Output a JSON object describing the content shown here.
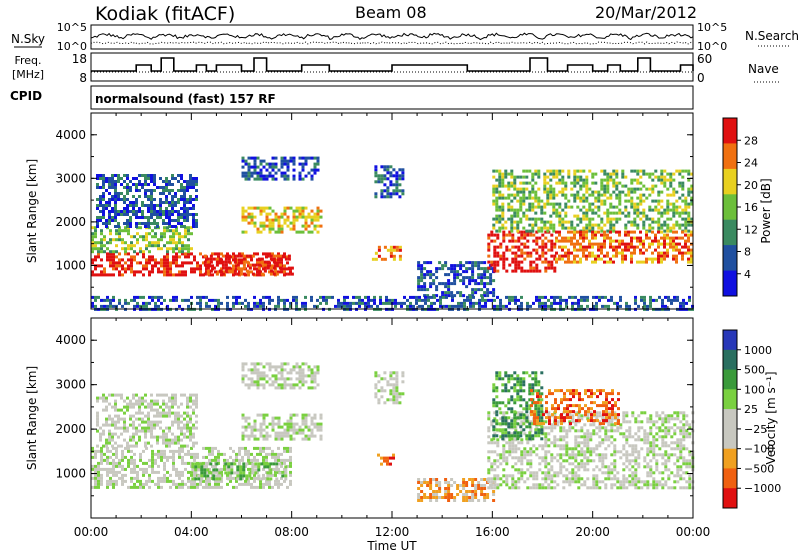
{
  "header": {
    "station": "Kodiak (fitACF)",
    "beam": "Beam 08",
    "date": "20/Mar/2012"
  },
  "sky_panel": {
    "left_label": "N.Sky",
    "right_label": "N.Search",
    "left_ticks": [
      "10^5",
      "10^0"
    ],
    "right_ticks": [
      "10^5",
      "10^0"
    ]
  },
  "freq_panel": {
    "left_label_1": "Freq.",
    "left_label_2": "[MHz]",
    "right_label": "Nave",
    "left_ticks": [
      "18",
      "8"
    ],
    "right_ticks": [
      "60",
      "0"
    ]
  },
  "cpid": {
    "label": "CPID",
    "text": "normalsound (fast) 157 RF"
  },
  "chart_data": [
    {
      "type": "heatmap",
      "name": "power",
      "ylabel": "Slant Range [km]",
      "xlabel": "",
      "ylim": [
        0,
        4500
      ],
      "xlim_hours": [
        0,
        24
      ],
      "y_ticks": [
        "1000",
        "2000",
        "3000",
        "4000"
      ],
      "colorbar_label": "Power [dB]",
      "colorbar_ticks": [
        "4",
        "8",
        "12",
        "16",
        "20",
        "24",
        "28"
      ],
      "colors": [
        "#1010e0",
        "#2050a0",
        "#3a8a60",
        "#6cbf3a",
        "#e8d020",
        "#f07010",
        "#e01010"
      ],
      "regions": [
        {
          "t0": 0.0,
          "t1": 8.0,
          "r0": 800,
          "r1": 1300,
          "level": 6
        },
        {
          "t0": 0.0,
          "t1": 4.0,
          "r0": 1300,
          "r1": 1900,
          "level": 3
        },
        {
          "t0": 0.2,
          "t1": 4.2,
          "r0": 1900,
          "r1": 3100,
          "level": 1
        },
        {
          "t0": 4.5,
          "t1": 8.0,
          "r0": 800,
          "r1": 1250,
          "level": 6
        },
        {
          "t0": 6.0,
          "t1": 9.2,
          "r0": 1750,
          "r1": 2350,
          "level": 4
        },
        {
          "t0": 6.0,
          "t1": 9.0,
          "r0": 2950,
          "r1": 3500,
          "level": 1
        },
        {
          "t0": 11.3,
          "t1": 12.4,
          "r0": 2600,
          "r1": 3300,
          "level": 1
        },
        {
          "t0": 11.2,
          "t1": 12.3,
          "r0": 1150,
          "r1": 1450,
          "level": 5
        },
        {
          "t0": 13.0,
          "t1": 16.0,
          "r0": 300,
          "r1": 1100,
          "level": 1
        },
        {
          "t0": 15.8,
          "t1": 18.5,
          "r0": 900,
          "r1": 1800,
          "level": 6
        },
        {
          "t0": 16.0,
          "t1": 24.0,
          "r0": 1800,
          "r1": 3200,
          "level": 3
        },
        {
          "t0": 18.5,
          "t1": 24.0,
          "r0": 1100,
          "r1": 1800,
          "level": 5
        },
        {
          "t0": 0.0,
          "t1": 24.0,
          "r0": 0,
          "r1": 300,
          "level": 1
        }
      ]
    },
    {
      "type": "heatmap",
      "name": "velocity",
      "ylabel": "Slant Range [km]",
      "xlabel": "Time UT",
      "ylim": [
        0,
        4500
      ],
      "xlim_hours": [
        0,
        24
      ],
      "y_ticks": [
        "1000",
        "2000",
        "3000",
        "4000"
      ],
      "x_ticks": [
        "00:00",
        "04:00",
        "08:00",
        "12:00",
        "16:00",
        "20:00",
        "00:00"
      ],
      "colorbar_label": "Velocity [m s⁻¹]",
      "colorbar_ticks": [
        "1000",
        "500",
        "100",
        "25",
        "−25",
        "−100",
        "−500",
        "−1000"
      ],
      "colors": [
        "#2838b8",
        "#2a6f60",
        "#3a9a3a",
        "#7ad040",
        "#c8c8c0",
        "#c8c8c0",
        "#f0a020",
        "#f06010",
        "#e01010"
      ],
      "regions": [
        {
          "t0": 0.0,
          "t1": 8.0,
          "r0": 700,
          "r1": 1600,
          "level": 4
        },
        {
          "t0": 0.2,
          "t1": 4.2,
          "r0": 1600,
          "r1": 2800,
          "level": 4
        },
        {
          "t0": 4.0,
          "t1": 7.8,
          "r0": 850,
          "r1": 1250,
          "level": 3
        },
        {
          "t0": 6.0,
          "t1": 9.2,
          "r0": 1750,
          "r1": 2350,
          "level": 4
        },
        {
          "t0": 6.0,
          "t1": 9.0,
          "r0": 2950,
          "r1": 3500,
          "level": 4
        },
        {
          "t0": 11.3,
          "t1": 12.4,
          "r0": 2600,
          "r1": 3300,
          "level": 4
        },
        {
          "t0": 11.4,
          "t1": 12.1,
          "r0": 1200,
          "r1": 1450,
          "level": 7
        },
        {
          "t0": 13.0,
          "t1": 16.0,
          "r0": 400,
          "r1": 900,
          "level": 6
        },
        {
          "t0": 15.8,
          "t1": 24.0,
          "r0": 700,
          "r1": 2400,
          "level": 4
        },
        {
          "t0": 16.0,
          "t1": 18.0,
          "r0": 1800,
          "r1": 3300,
          "level": 2
        },
        {
          "t0": 17.5,
          "t1": 21.0,
          "r0": 2100,
          "r1": 2900,
          "level": 7
        }
      ]
    }
  ]
}
